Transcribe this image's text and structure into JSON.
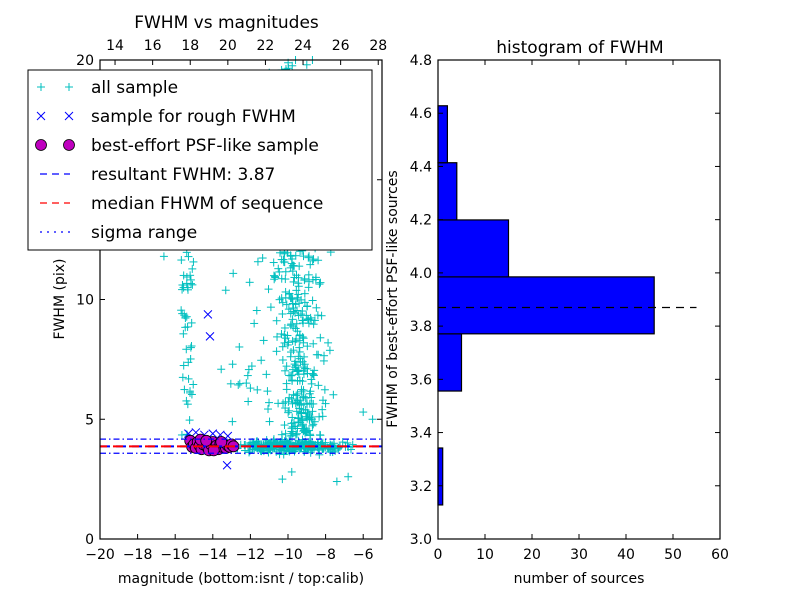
{
  "chart_data": [
    {
      "type": "scatter",
      "title": "FWHM vs magnitudes",
      "xlabel": "magnitude (bottom:isnt / top:calib)",
      "ylabel": "FWHM (pix)",
      "xlim": [
        -20,
        -5
      ],
      "ylim": [
        0,
        20
      ],
      "xticks": [
        -20,
        -18,
        -16,
        -14,
        -12,
        -10,
        -8,
        -6
      ],
      "xtick_labels": [
        "−20",
        "−18",
        "−16",
        "−14",
        "−12",
        "−10",
        "−8",
        "−6"
      ],
      "yticks": [
        0,
        5,
        10,
        15,
        20
      ],
      "ytick_labels": [
        "0",
        "5",
        "10",
        "15",
        "20"
      ],
      "top_axis": {
        "xlim": [
          13.2,
          28.2
        ],
        "xticks": [
          14,
          16,
          18,
          20,
          22,
          24,
          26,
          28
        ],
        "xtick_labels": [
          "14",
          "16",
          "18",
          "20",
          "22",
          "24",
          "26",
          "28"
        ]
      },
      "grid": false,
      "legend": {
        "placement": "top-left",
        "entries": [
          {
            "label": "all sample",
            "marker": "plus",
            "color": "#00bfbf"
          },
          {
            "label": "sample for rough FWHM",
            "marker": "x",
            "color": "#0000ff"
          },
          {
            "label": "best-effort PSF-like sample",
            "marker": "circle",
            "color": "#bf00bf"
          },
          {
            "label": "resultant FWHM: 3.87",
            "linestyle": "dashed",
            "color": "#0000ff"
          },
          {
            "label": "median FHWM of sequence",
            "linestyle": "dashed",
            "color": "#ff0000"
          },
          {
            "label": "sigma range",
            "linestyle": "dashdot",
            "color": "#0000ff"
          }
        ]
      },
      "lines": {
        "resultant_fwhm": 3.87,
        "median_fwhm": 3.87,
        "sigma_range": [
          3.58,
          4.17
        ]
      },
      "series": [
        {
          "name": "all sample",
          "marker": "plus",
          "color": "#00bfbf",
          "clusters": [
            {
              "x_center": -15.3,
              "x_spread": 0.35,
              "y_min": 4.3,
              "y_max": 12.0,
              "count": 45
            },
            {
              "x_center": -9.5,
              "x_spread": 0.9,
              "y_min": 4.3,
              "y_max": 20.0,
              "count": 420
            },
            {
              "x_center": -10.0,
              "x_spread": 2.0,
              "y_min": 3.6,
              "y_max": 4.2,
              "count": 260
            },
            {
              "x_center": -10.5,
              "x_spread": 2.8,
              "y_min": 4.5,
              "y_max": 12.0,
              "count": 70
            },
            {
              "x_center": -8.5,
              "x_spread": 2.0,
              "y_min": 2.5,
              "y_max": 3.6,
              "count": 30
            }
          ],
          "points": [
            [
              -14.2,
              3.9
            ],
            [
              -13.6,
              3.9
            ],
            [
              -12.8,
              3.85
            ],
            [
              -12.0,
              3.9
            ],
            [
              -11.4,
              3.95
            ],
            [
              -6.0,
              5.3
            ],
            [
              -5.5,
              5.0
            ],
            [
              -6.8,
              2.6
            ],
            [
              -7.4,
              2.4
            ],
            [
              -9.8,
              2.8
            ],
            [
              -10.3,
              2.5
            ],
            [
              -12.0,
              6.3
            ],
            [
              -11.8,
              9.0
            ],
            [
              -16.6,
              11.8
            ],
            [
              -9.8,
              11.5
            ],
            [
              -9.6,
              20.0
            ],
            [
              -9.0,
              19.8
            ],
            [
              -8.7,
              20.0
            ]
          ]
        },
        {
          "name": "sample for rough FWHM",
          "marker": "x",
          "color": "#0000ff",
          "points": [
            [
              -14.26,
              9.38
            ],
            [
              -14.15,
              8.46
            ],
            [
              -13.24,
              3.08
            ],
            [
              -15.3,
              4.4
            ],
            [
              -14.9,
              4.45
            ],
            [
              -14.45,
              4.35
            ],
            [
              -14.0,
              4.4
            ],
            [
              -13.6,
              4.35
            ],
            [
              -13.2,
              4.3
            ]
          ]
        },
        {
          "name": "best-effort PSF-like sample",
          "marker": "circle",
          "color": "#bf00bf",
          "points": [
            [
              -15.2,
              4.1
            ],
            [
              -15.1,
              3.85
            ],
            [
              -15.0,
              3.95
            ],
            [
              -14.9,
              3.8
            ],
            [
              -14.8,
              4.05
            ],
            [
              -14.7,
              3.9
            ],
            [
              -14.6,
              3.75
            ],
            [
              -14.5,
              3.95
            ],
            [
              -14.4,
              4.0
            ],
            [
              -14.3,
              3.85
            ],
            [
              -14.2,
              3.7
            ],
            [
              -14.1,
              3.95
            ],
            [
              -14.0,
              4.05
            ],
            [
              -13.9,
              3.8
            ],
            [
              -13.8,
              3.9
            ],
            [
              -13.7,
              3.75
            ],
            [
              -13.6,
              4.0
            ],
            [
              -13.5,
              3.85
            ],
            [
              -13.4,
              3.95
            ],
            [
              -13.3,
              3.8
            ],
            [
              -13.2,
              3.9
            ],
            [
              -13.1,
              3.85
            ],
            [
              -13.0,
              3.95
            ],
            [
              -12.9,
              3.87
            ],
            [
              -14.65,
              4.15
            ],
            [
              -14.35,
              4.1
            ],
            [
              -13.95,
              3.7
            ],
            [
              -13.55,
              4.05
            ]
          ]
        }
      ]
    },
    {
      "type": "bar",
      "orientation": "horizontal",
      "title": "histogram of FWHM",
      "xlabel": "number of sources",
      "ylabel": "FWHM of best-effort PSF-like sources",
      "xlim": [
        0,
        60
      ],
      "ylim": [
        3.0,
        4.8
      ],
      "xticks": [
        0,
        10,
        20,
        30,
        40,
        50,
        60
      ],
      "xtick_labels": [
        "0",
        "10",
        "20",
        "30",
        "40",
        "50",
        "60"
      ],
      "yticks": [
        3.0,
        3.2,
        3.4,
        3.6,
        3.8,
        4.0,
        4.2,
        4.4,
        4.6,
        4.8
      ],
      "ytick_labels": [
        "3.0",
        "3.2",
        "3.4",
        "3.6",
        "3.8",
        "4.0",
        "4.2",
        "4.4",
        "4.6",
        "4.8"
      ],
      "grid": false,
      "bar_color": "#0000ff",
      "bins": [
        {
          "low": 3.128,
          "high": 3.342,
          "count": 1
        },
        {
          "low": 3.342,
          "high": 3.556,
          "count": 0
        },
        {
          "low": 3.556,
          "high": 3.771,
          "count": 5
        },
        {
          "low": 3.771,
          "high": 3.985,
          "count": 46
        },
        {
          "low": 3.985,
          "high": 4.199,
          "count": 15
        },
        {
          "low": 4.199,
          "high": 4.414,
          "count": 4
        },
        {
          "low": 4.414,
          "high": 4.628,
          "count": 2
        }
      ],
      "reference_line": {
        "y": 3.87,
        "x_range": [
          0,
          55
        ],
        "linestyle": "dashed",
        "color": "#000000"
      }
    }
  ]
}
